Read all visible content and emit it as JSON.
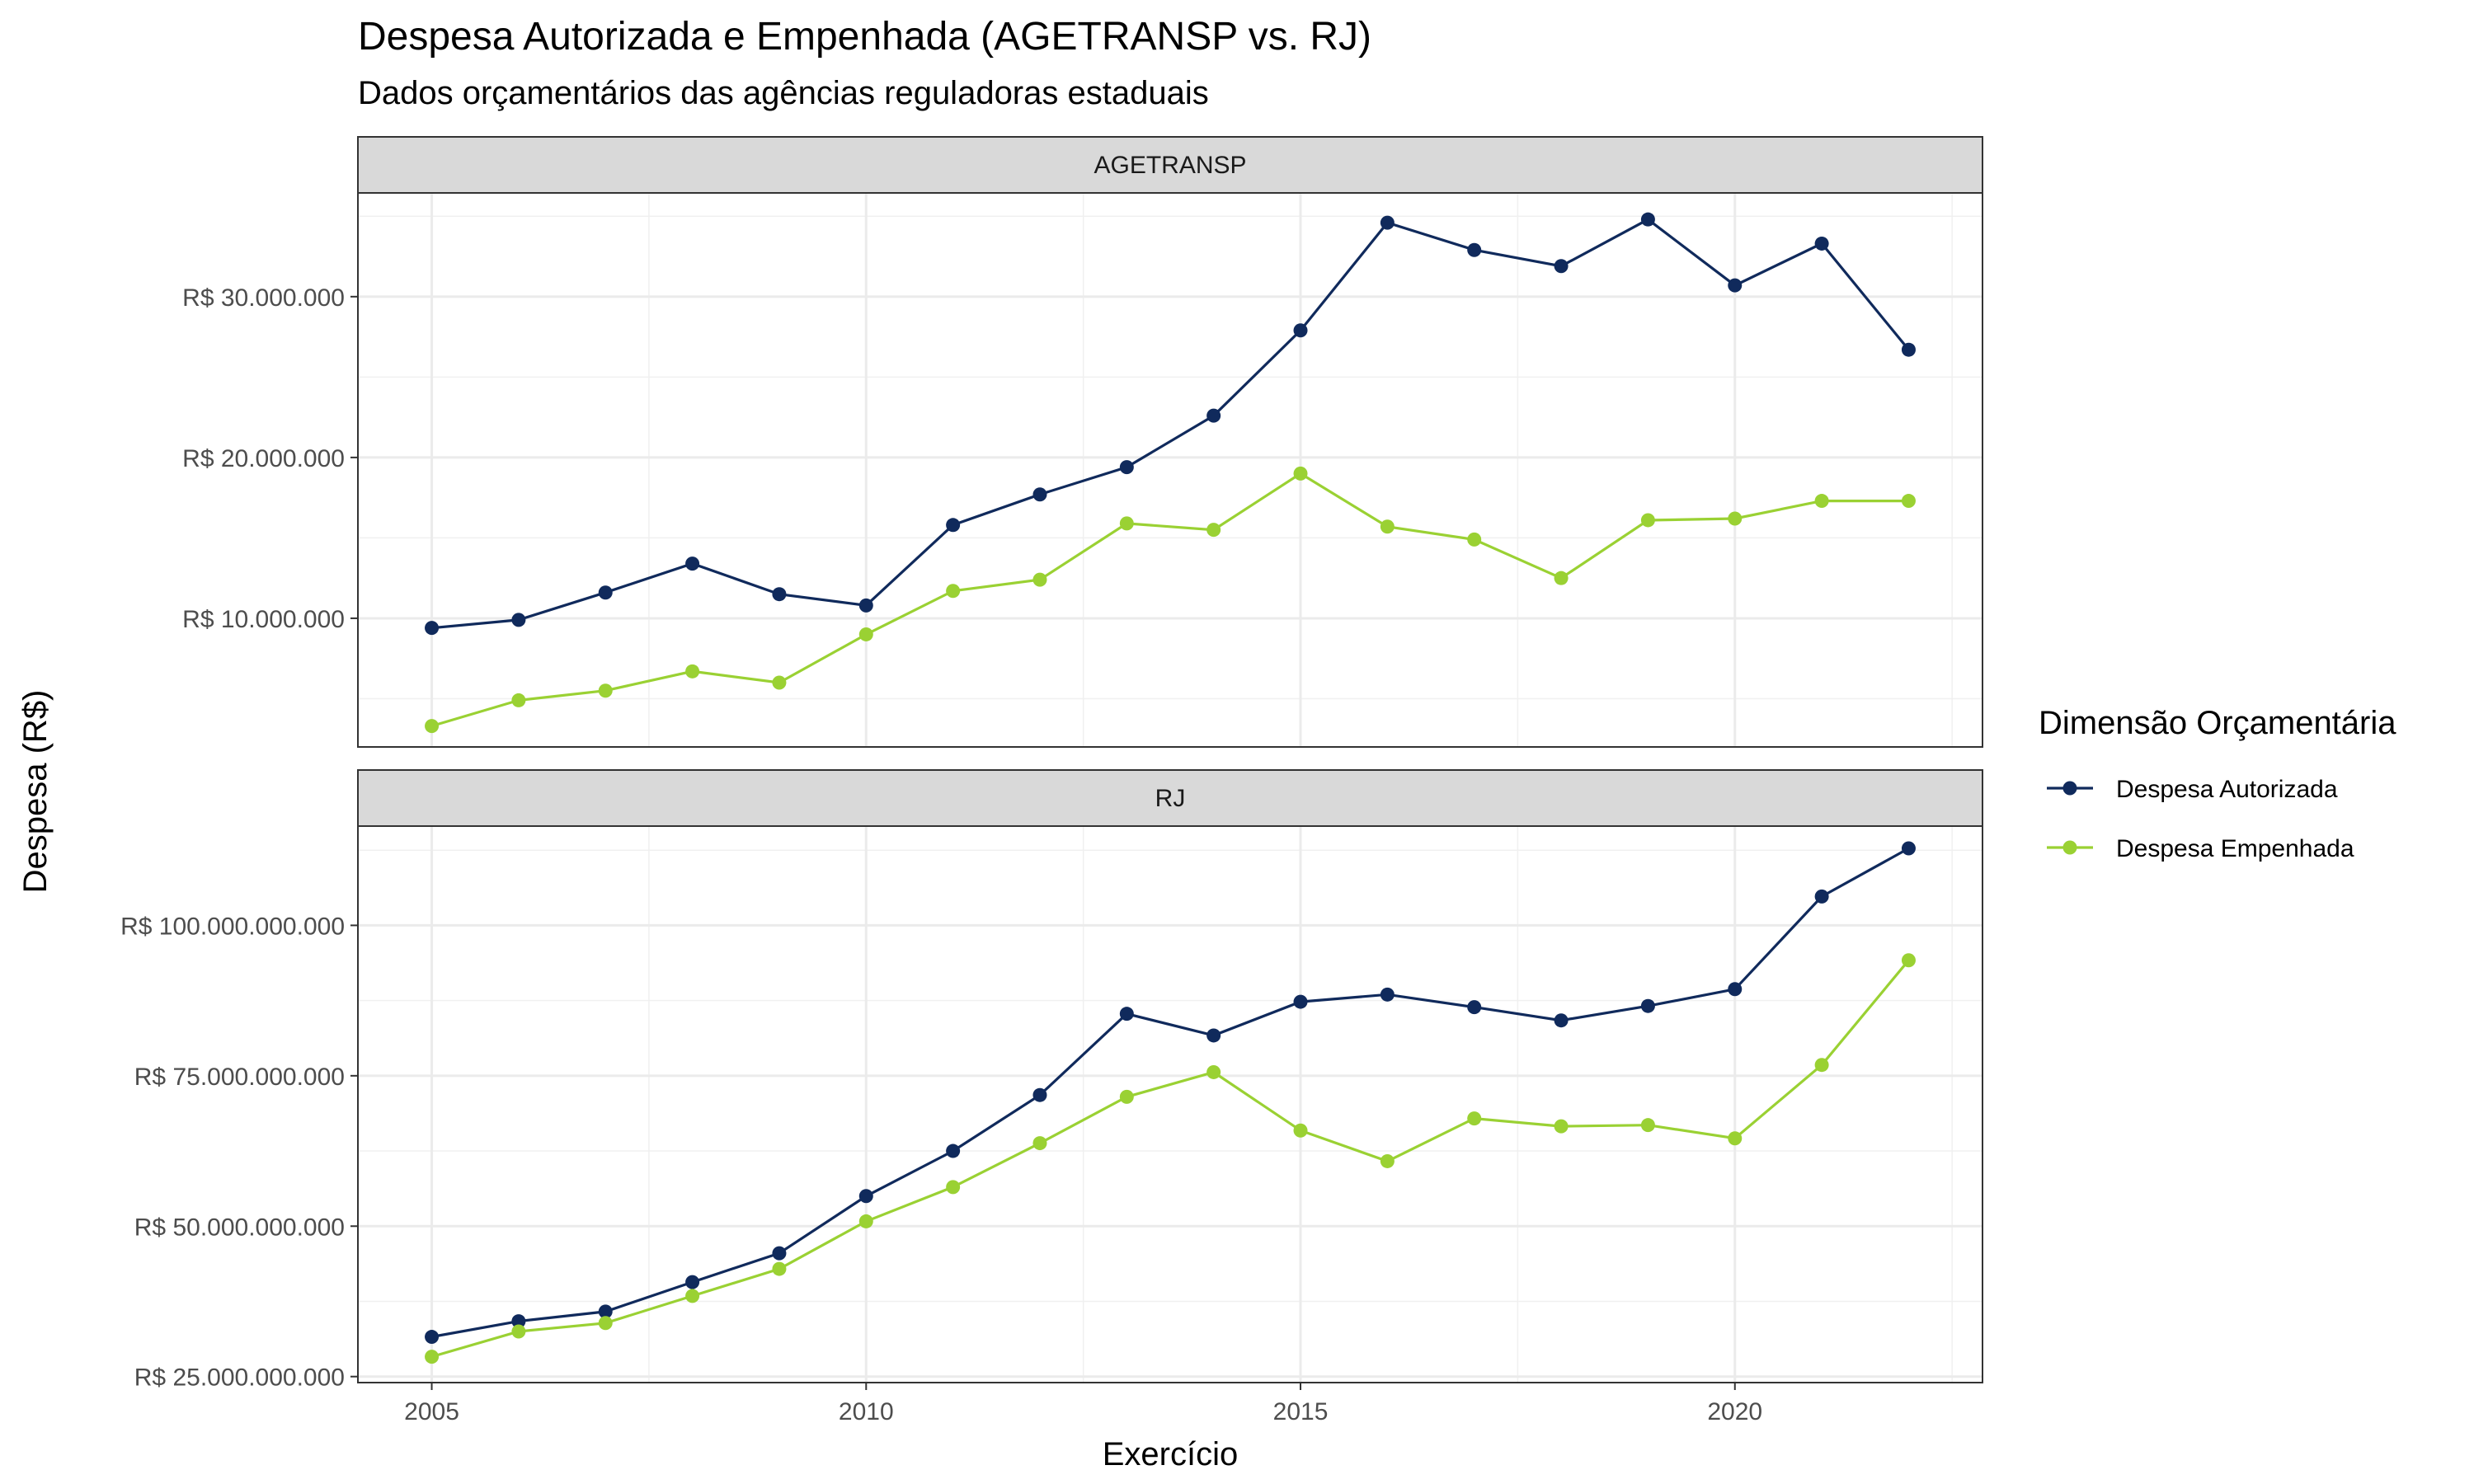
{
  "title": "Despesa Autorizada e Empenhada (AGETRANSP vs. RJ)",
  "subtitle": "Dados orçamentários das agências reguladoras estaduais",
  "colors": {
    "autorizada": "#102a5c",
    "empenhada": "#9ad133"
  },
  "chart_data": {
    "type": "line",
    "title": "Despesa Autorizada e Empenhada (AGETRANSP vs. RJ)",
    "subtitle": "Dados orçamentários das agências reguladoras estaduais",
    "xlabel": "Exercício",
    "ylabel": "Despesa (R$)",
    "grid": true,
    "legend": {
      "title": "Dimensão Orçamentária",
      "position": "right",
      "entries": [
        "Despesa Autorizada",
        "Despesa Empenhada"
      ]
    },
    "x_ticks": [
      2005,
      2010,
      2015,
      2020
    ],
    "x_range": [
      2004.15,
      2022.85
    ],
    "facets": [
      {
        "name": "AGETRANSP",
        "y_ticks": [
          10000000,
          20000000,
          30000000
        ],
        "y_tick_labels": [
          "R$ 10.000.000",
          "R$ 20.000.000",
          "R$ 30.000.000"
        ],
        "y_range": [
          2000000,
          36450000
        ],
        "x": [
          2005,
          2006,
          2007,
          2008,
          2009,
          2010,
          2011,
          2012,
          2013,
          2014,
          2015,
          2016,
          2017,
          2018,
          2019,
          2020,
          2021,
          2022
        ],
        "series": [
          {
            "name": "Despesa Autorizada",
            "values": [
              9400000,
              9900000,
              11600000,
              13400000,
              11500000,
              10800000,
              15800000,
              17700000,
              19400000,
              22600000,
              27900000,
              34600000,
              32900000,
              31900000,
              34800000,
              30700000,
              33300000,
              26700000
            ]
          },
          {
            "name": "Despesa Empenhada",
            "values": [
              3300000,
              4900000,
              5500000,
              6700000,
              6000000,
              9000000,
              11700000,
              12400000,
              15900000,
              15500000,
              19000000,
              15700000,
              14900000,
              12500000,
              16100000,
              16200000,
              17300000,
              17300000
            ]
          }
        ]
      },
      {
        "name": "RJ",
        "y_ticks": [
          25000000000,
          50000000000,
          75000000000,
          100000000000
        ],
        "y_tick_labels": [
          "R$ 25.000.000.000",
          "R$ 50.000.000.000",
          "R$ 75.000.000.000",
          "R$ 100.000.000.000"
        ],
        "y_range": [
          24000000000,
          116500000000
        ],
        "x": [
          2005,
          2006,
          2007,
          2008,
          2009,
          2010,
          2011,
          2012,
          2013,
          2014,
          2015,
          2016,
          2017,
          2018,
          2019,
          2020,
          2021,
          2022
        ],
        "series": [
          {
            "name": "Despesa Autorizada",
            "values": [
              31600000000,
              34200000000,
              35800000000,
              40700000000,
              45500000000,
              55000000000,
              62500000000,
              71800000000,
              85300000000,
              81700000000,
              87300000000,
              88500000000,
              86400000000,
              84200000000,
              86600000000,
              89400000000,
              104800000000,
              112800000000
            ]
          },
          {
            "name": "Despesa Empenhada",
            "values": [
              28300000000,
              32500000000,
              33900000000,
              38400000000,
              42900000000,
              50800000000,
              56500000000,
              63800000000,
              71500000000,
              75600000000,
              65900000000,
              60800000000,
              67900000000,
              66600000000,
              66800000000,
              64600000000,
              76800000000,
              94200000000
            ]
          }
        ]
      }
    ]
  }
}
